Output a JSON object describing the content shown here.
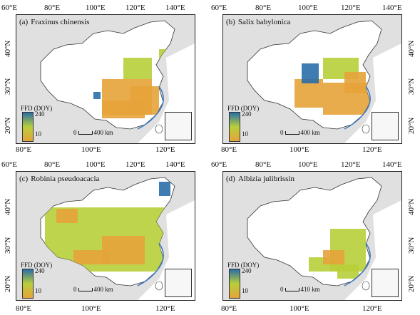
{
  "colors": {
    "low": "#e6a33a",
    "mid": "#b8cf3a",
    "high": "#2a6ea8",
    "sea": "#3a78c2",
    "land": "#ffffff",
    "neighbor": "#e0e0e0",
    "border": "#333333"
  },
  "legend": {
    "title": "FFD  (DOY)",
    "max": "240",
    "min": "10"
  },
  "coords": {
    "lon_top_left": [
      "60°E",
      "80°E",
      "100°E",
      "120°E",
      "140°E"
    ],
    "lon_top_right": [
      "60°E",
      "80°E",
      "100°E",
      "120°E",
      "140°E"
    ],
    "lon_bottom_left": [
      "80°E",
      "100°E",
      "120°E"
    ],
    "lon_bottom_right": [
      "80°E",
      "100°E",
      "120°E"
    ],
    "lat_left": [
      "40°N",
      "30°N",
      "20°N"
    ],
    "lat_right": [
      "40°N",
      "30°N",
      "20°N"
    ]
  },
  "panels": [
    {
      "letter": "(a)",
      "species": "Fraxinus chinensis",
      "scale": "400 km"
    },
    {
      "letter": "(b)",
      "species": "Salix babylonica",
      "scale": "400 km"
    },
    {
      "letter": "(c)",
      "species": "Robinia pseudoacacia",
      "scale": "400 km"
    },
    {
      "letter": "(d)",
      "species": "Albizia julibrissin",
      "scale": "410 km"
    }
  ]
}
